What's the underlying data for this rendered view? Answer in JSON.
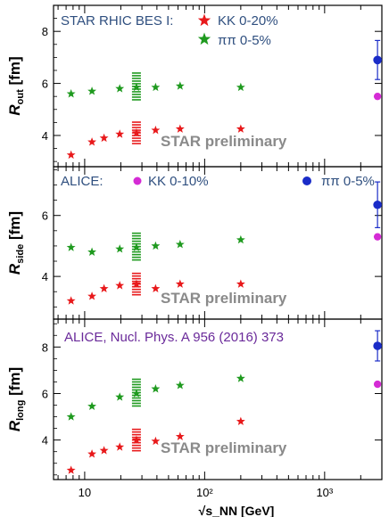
{
  "legend": {
    "star_title": "STAR RHIC BES I:",
    "star_kk": "KK 0-20%",
    "star_pipi": "ππ  0-5%",
    "alice_title": "ALICE:",
    "alice_kk": "KK 0-10%",
    "alice_pipi": "ππ 0-5%",
    "reference": "ALICE, Nucl. Phys. A 956 (2016) 373",
    "preliminary": "STAR preliminary"
  },
  "colors": {
    "star_kk": "#e8191b",
    "star_pipi": "#1f9a1f",
    "alice_kk": "#d52bd5",
    "alice_pipi": "#1a2cc8"
  },
  "chart_data": [
    {
      "type": "scatter",
      "panel": "top",
      "ylabel": "R_out [fm]",
      "ylabel_main": "R",
      "ylabel_sub": "out",
      "ylabel_unit": "[fm]",
      "ylim": [
        2.8,
        9.0
      ],
      "yticks": [
        4,
        6,
        8
      ],
      "x_scale": "log",
      "xlim": [
        5.5,
        3000
      ],
      "series": [
        {
          "name": "KK 0-20%",
          "marker": "star",
          "color": "#e8191b",
          "points": [
            [
              7.7,
              3.25
            ],
            [
              11.5,
              3.75
            ],
            [
              14.5,
              3.9
            ],
            [
              19.6,
              4.05
            ],
            [
              27,
              4.1
            ],
            [
              39,
              4.2
            ],
            [
              62.4,
              4.25
            ],
            [
              200,
              4.25
            ]
          ]
        },
        {
          "name": "ππ  0-5%",
          "marker": "star",
          "color": "#1f9a1f",
          "points": [
            [
              7.7,
              5.6
            ],
            [
              11.5,
              5.7
            ],
            [
              19.6,
              5.8
            ],
            [
              27,
              5.85
            ],
            [
              39,
              5.85
            ],
            [
              62.4,
              5.9
            ],
            [
              200,
              5.85
            ]
          ]
        },
        {
          "name": "KK 0-10%",
          "marker": "circle",
          "color": "#d52bd5",
          "points": [
            [
              2760,
              5.5
            ]
          ]
        },
        {
          "name": "ππ 0-5%",
          "marker": "circle",
          "color": "#1a2cc8",
          "points": [
            [
              2760,
              6.9
            ]
          ],
          "err": [
            0.75
          ]
        }
      ]
    },
    {
      "type": "scatter",
      "panel": "middle",
      "ylabel": "R_side [fm]",
      "ylabel_main": "R",
      "ylabel_sub": "side",
      "ylabel_unit": "[fm]",
      "ylim": [
        2.6,
        7.6
      ],
      "yticks": [
        4,
        6
      ],
      "x_scale": "log",
      "xlim": [
        5.5,
        3000
      ],
      "series": [
        {
          "name": "KK 0-20%",
          "marker": "star",
          "color": "#e8191b",
          "points": [
            [
              7.7,
              3.2
            ],
            [
              11.5,
              3.35
            ],
            [
              14.5,
              3.6
            ],
            [
              19.6,
              3.7
            ],
            [
              27,
              3.75
            ],
            [
              39,
              3.6
            ],
            [
              62.4,
              3.75
            ],
            [
              200,
              3.75
            ]
          ]
        },
        {
          "name": "ππ  0-5%",
          "marker": "star",
          "color": "#1f9a1f",
          "points": [
            [
              7.7,
              4.95
            ],
            [
              11.5,
              4.8
            ],
            [
              19.6,
              4.9
            ],
            [
              27,
              4.95
            ],
            [
              39,
              5.0
            ],
            [
              62.4,
              5.05
            ],
            [
              200,
              5.2
            ]
          ]
        },
        {
          "name": "KK 0-10%",
          "marker": "circle",
          "color": "#d52bd5",
          "points": [
            [
              2760,
              5.3
            ]
          ]
        },
        {
          "name": "ππ 0-5%",
          "marker": "circle",
          "color": "#1a2cc8",
          "points": [
            [
              2760,
              6.35
            ]
          ],
          "err": [
            0.75
          ]
        }
      ]
    },
    {
      "type": "scatter",
      "panel": "bottom",
      "ylabel": "R_long [fm]",
      "ylabel_main": "R",
      "ylabel_sub": "long",
      "ylabel_unit": "[fm]",
      "ylim": [
        2.3,
        9.2
      ],
      "yticks": [
        4,
        6,
        8
      ],
      "x_scale": "log",
      "xlim": [
        5.5,
        3000
      ],
      "xlabel": "√s_NN [GeV]",
      "xticks": [
        {
          "v": 10,
          "label": "10"
        },
        {
          "v": 100,
          "label": "10²"
        },
        {
          "v": 1000,
          "label": "10³"
        }
      ],
      "series": [
        {
          "name": "KK 0-20%",
          "marker": "star",
          "color": "#e8191b",
          "points": [
            [
              7.7,
              2.7
            ],
            [
              11.5,
              3.4
            ],
            [
              14.5,
              3.55
            ],
            [
              19.6,
              3.7
            ],
            [
              27,
              4.0
            ],
            [
              39,
              3.95
            ],
            [
              62.4,
              4.15
            ],
            [
              200,
              4.8
            ]
          ]
        },
        {
          "name": "ππ  0-5%",
          "marker": "star",
          "color": "#1f9a1f",
          "points": [
            [
              7.7,
              5.0
            ],
            [
              11.5,
              5.45
            ],
            [
              19.6,
              5.85
            ],
            [
              27,
              6.0
            ],
            [
              39,
              6.2
            ],
            [
              62.4,
              6.35
            ],
            [
              200,
              6.65
            ]
          ]
        },
        {
          "name": "KK 0-10%",
          "marker": "circle",
          "color": "#d52bd5",
          "points": [
            [
              2760,
              6.4
            ]
          ]
        },
        {
          "name": "ππ 0-5%",
          "marker": "circle",
          "color": "#1a2cc8",
          "points": [
            [
              2760,
              8.05
            ]
          ],
          "err": [
            0.65
          ]
        }
      ]
    }
  ]
}
